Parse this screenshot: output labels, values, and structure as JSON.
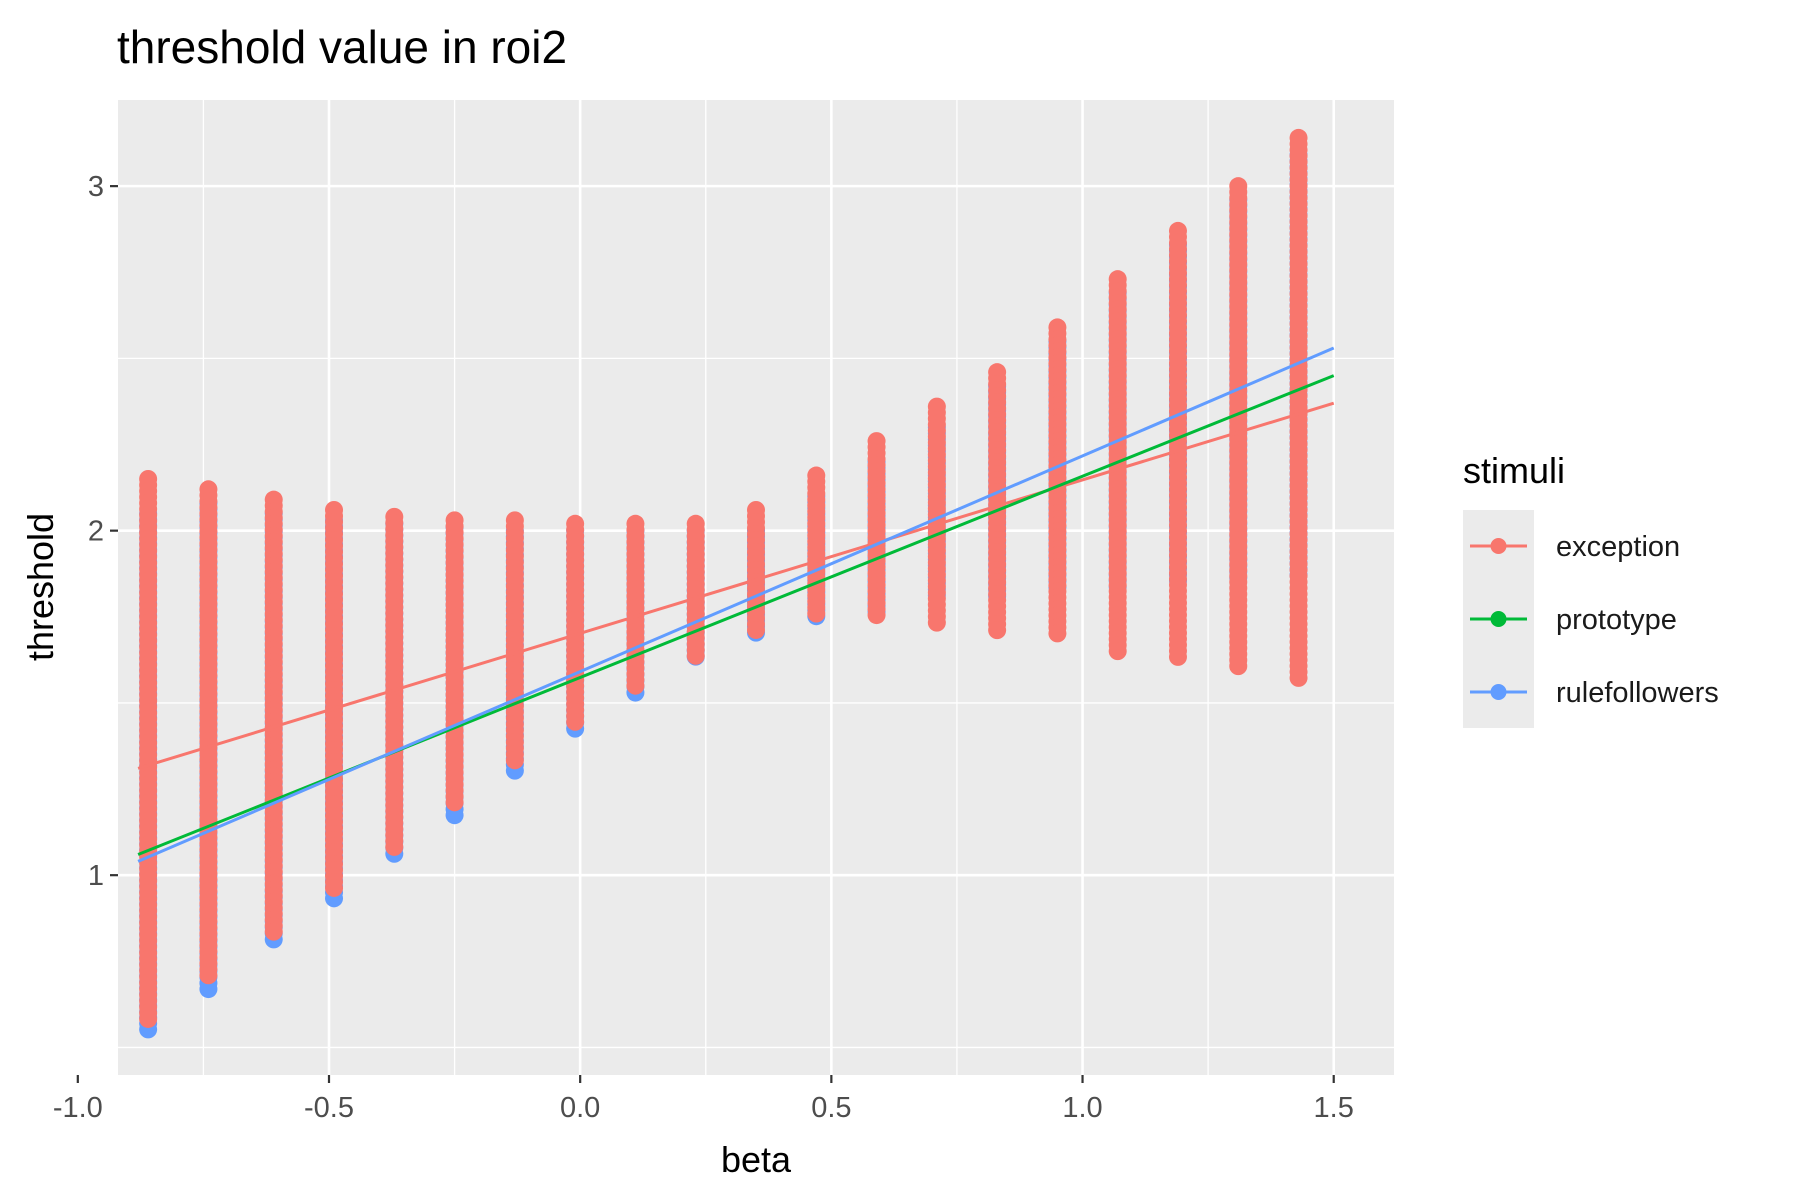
{
  "chart_data": {
    "type": "scatter",
    "title": "threshold value in roi2",
    "xlabel": "beta",
    "ylabel": "threshold",
    "xlim": [
      -0.92,
      1.62
    ],
    "ylim": [
      0.42,
      3.25
    ],
    "x_ticks": [
      -1.0,
      -0.5,
      0.0,
      0.5,
      1.0,
      1.5
    ],
    "x_tick_labels": [
      "-1.0",
      "-0.5",
      "0.0",
      "0.5",
      "1.0",
      "1.5"
    ],
    "y_ticks": [
      1,
      2,
      3
    ],
    "y_tick_labels": [
      "1",
      "2",
      "3"
    ],
    "grid": true,
    "legend": {
      "title": "stimuli",
      "position": "right"
    },
    "x": [
      -0.86,
      -0.74,
      -0.61,
      -0.49,
      -0.37,
      -0.25,
      -0.13,
      -0.01,
      0.11,
      0.23,
      0.35,
      0.47,
      0.59,
      0.71,
      0.83,
      0.95,
      1.07,
      1.19,
      1.31,
      1.43
    ],
    "series": [
      {
        "name": "exception",
        "color": "#F8766D",
        "point_ranges": [
          [
            0.57,
            2.15
          ],
          [
            0.7,
            2.12
          ],
          [
            0.83,
            2.09
          ],
          [
            0.96,
            2.06
          ],
          [
            1.08,
            2.04
          ],
          [
            1.2,
            2.03
          ],
          [
            1.33,
            2.03
          ],
          [
            1.44,
            2.02
          ],
          [
            1.55,
            2.02
          ],
          [
            1.62,
            2.02
          ],
          [
            1.7,
            2.06
          ],
          [
            1.75,
            2.16
          ],
          [
            1.75,
            2.26
          ],
          [
            1.73,
            2.36
          ],
          [
            1.71,
            2.46
          ],
          [
            1.69,
            2.59
          ],
          [
            1.65,
            2.73
          ],
          [
            1.62,
            2.87
          ],
          [
            1.59,
            3.0
          ],
          [
            1.56,
            3.14
          ]
        ],
        "trend": {
          "x": [
            -0.88,
            1.5
          ],
          "y": [
            1.31,
            2.37
          ]
        }
      },
      {
        "name": "prototype",
        "color": "#00BA38",
        "point_ranges": [],
        "trend": {
          "x": [
            -0.88,
            1.5
          ],
          "y": [
            1.06,
            2.45
          ]
        }
      },
      {
        "name": "rulefollowers",
        "color": "#619CFF",
        "point_ranges": [
          [
            0.54,
            2.05
          ],
          [
            0.66,
            2.08
          ],
          [
            0.8,
            2.05
          ],
          [
            0.93,
            2.03
          ],
          [
            1.05,
            2.02
          ],
          [
            1.17,
            2.01
          ],
          [
            1.29,
            2.0
          ],
          [
            1.41,
            2.0
          ],
          [
            1.53,
            2.0
          ],
          [
            1.63,
            2.0
          ],
          [
            1.7,
            2.0
          ],
          [
            1.75,
            2.1
          ],
          [
            1.76,
            2.2
          ],
          [
            1.8,
            2.3
          ],
          [
            1.8,
            2.42
          ],
          [
            1.82,
            2.55
          ],
          [
            1.83,
            2.69
          ],
          [
            1.85,
            2.83
          ],
          [
            1.86,
            2.96
          ],
          [
            1.86,
            3.09
          ]
        ],
        "trend": {
          "x": [
            -0.88,
            1.5
          ],
          "y": [
            1.04,
            2.53
          ]
        }
      }
    ]
  }
}
